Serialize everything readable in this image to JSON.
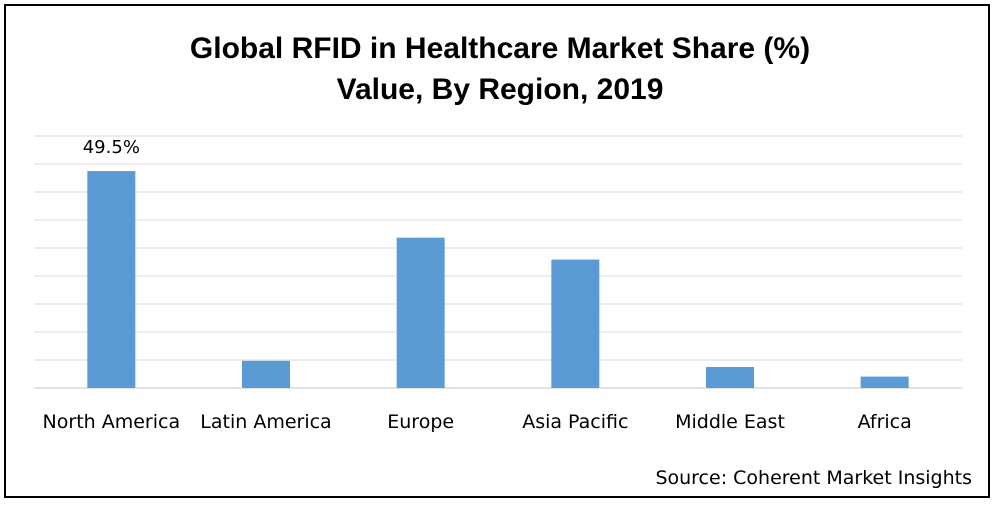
{
  "chart_data": {
    "type": "bar",
    "title": [
      "Global RFID in Healthcare Market Share (%)",
      "Value, By Region, 2019"
    ],
    "categories": [
      "North America",
      "Latin America",
      "Europe",
      "Asia Pacific",
      "Middle East",
      "Africa"
    ],
    "values": [
      49.5,
      6.2,
      34.3,
      29.3,
      4.8,
      2.6
    ],
    "data_labels": [
      "49.5%",
      "",
      "",
      "",
      "",
      ""
    ],
    "ylim": [
      0,
      57.5
    ],
    "gridlines": 9,
    "grid": true,
    "y_tick_labels_shown": false,
    "legend": "none",
    "bar_color": "#5b9bd5",
    "grid_color": "#d9d9d9"
  },
  "source": "Source: Coherent Market Insights"
}
